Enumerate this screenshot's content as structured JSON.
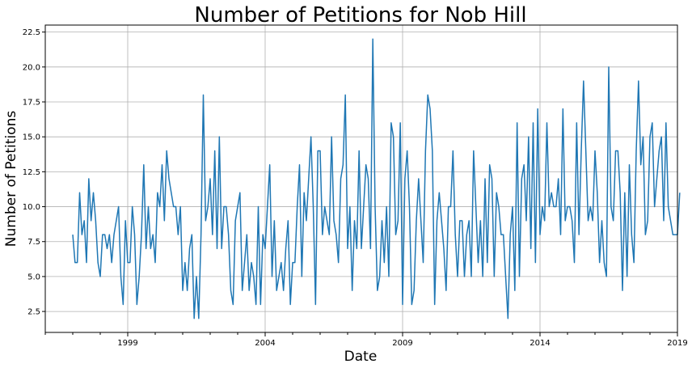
{
  "chart_data": {
    "type": "line",
    "title": "Number of Petitions for Nob Hill",
    "xlabel": "Date",
    "ylabel": "Number of Petitions",
    "x_ticks": [
      "1999",
      "2004",
      "2009",
      "2014",
      "2019"
    ],
    "y_ticks": [
      "2.5",
      "5.0",
      "7.5",
      "10.0",
      "12.5",
      "15.0",
      "17.5",
      "20.0",
      "22.5"
    ],
    "xlim": [
      "1996-01",
      "2019-01"
    ],
    "ylim": [
      1.0,
      23.0
    ],
    "grid": true,
    "x_start": "1997-01",
    "x_step": "1 month",
    "series": [
      {
        "color": "#1f77b4",
        "values": [
          8,
          6,
          6,
          11,
          8,
          9,
          6,
          12,
          9,
          11,
          9,
          6,
          5,
          8,
          8,
          7,
          8,
          6,
          8,
          9,
          10,
          5,
          3,
          9,
          6,
          6,
          10,
          8,
          3,
          5,
          8,
          13,
          7,
          10,
          7,
          8,
          6,
          11,
          10,
          13,
          9,
          14,
          12,
          11,
          10,
          10,
          8,
          10,
          4,
          6,
          4,
          7,
          8,
          2,
          5,
          2,
          8,
          18,
          9,
          10,
          12,
          8,
          14,
          7,
          15,
          7,
          10,
          10,
          8,
          4,
          3,
          9,
          10,
          11,
          4,
          6,
          8,
          4,
          6,
          5,
          3,
          10,
          3,
          8,
          7,
          10,
          13,
          5,
          9,
          4,
          5,
          6,
          4,
          7,
          9,
          3,
          6,
          6,
          10,
          13,
          5,
          11,
          9,
          12,
          15,
          10,
          3,
          14,
          14,
          8,
          10,
          9,
          8,
          15,
          9,
          8,
          6,
          12,
          13,
          18,
          7,
          10,
          4,
          9,
          7,
          14,
          7,
          10,
          13,
          12,
          7,
          22,
          10,
          4,
          5,
          9,
          6,
          10,
          5,
          16,
          15,
          8,
          9,
          16,
          3,
          12,
          14,
          10,
          3,
          4,
          9,
          12,
          9,
          6,
          14,
          18,
          17,
          14,
          3,
          9,
          11,
          9,
          7,
          4,
          10,
          10,
          14,
          8,
          5,
          9,
          9,
          5,
          8,
          9,
          5,
          14,
          10,
          6,
          9,
          5,
          12,
          6,
          13,
          12,
          5,
          11,
          10,
          8,
          8,
          5,
          2,
          8,
          10,
          4,
          16,
          5,
          12,
          13,
          9,
          15,
          7,
          16,
          6,
          17,
          8,
          10,
          9,
          16,
          10,
          11,
          10,
          10,
          12,
          8,
          17,
          9,
          10,
          10,
          9,
          6,
          16,
          8,
          14,
          19,
          14,
          9,
          10,
          9,
          14,
          11,
          6,
          9,
          6,
          5,
          20,
          10,
          9,
          14,
          14,
          11,
          4,
          11,
          5,
          13,
          8,
          6,
          14,
          19,
          13,
          15,
          8,
          9,
          15,
          16,
          10,
          12,
          14,
          15,
          9,
          16,
          10,
          9,
          8,
          8,
          8,
          11
        ]
      }
    ]
  }
}
